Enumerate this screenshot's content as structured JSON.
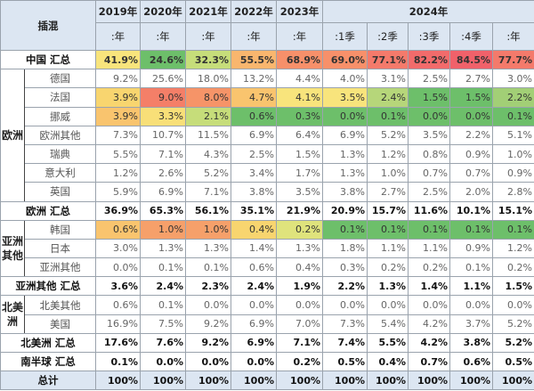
{
  "header": {
    "corner": "插混",
    "years": [
      "2019年",
      "2020年",
      "2021年",
      "2022年",
      "2023年",
      "2024年"
    ],
    "sub": [
      ":年",
      ":年",
      ":年",
      ":年",
      ":年",
      ":1季",
      ":2季",
      ":3季",
      ":4季",
      ":年"
    ]
  },
  "groups": {
    "europe": "欧洲",
    "asia": "亚洲其他",
    "na": "北美洲"
  },
  "rows": [
    {
      "name": "中国 汇总",
      "type": "sum",
      "values": [
        "41.9%",
        "24.6%",
        "32.3%",
        "55.5%",
        "68.9%",
        "69.0%",
        "77.1%",
        "82.2%",
        "84.5%",
        "77.7%"
      ],
      "colors": [
        "#f8e47c",
        "#6dbf6a",
        "#c6dd7a",
        "#f9b66e",
        "#f7906a",
        "#f7906a",
        "#f47a6b",
        "#f26b6b",
        "#f0616a",
        "#f47a6b"
      ]
    },
    {
      "name": "德国",
      "group": "europe",
      "values": [
        "9.2%",
        "25.6%",
        "18.0%",
        "13.2%",
        "4.4%",
        "4.0%",
        "3.1%",
        "2.5%",
        "2.7%",
        "3.0%"
      ]
    },
    {
      "name": "法国",
      "group": "europe",
      "values": [
        "3.9%",
        "9.0%",
        "8.0%",
        "4.7%",
        "4.1%",
        "3.5%",
        "2.4%",
        "1.5%",
        "1.5%",
        "2.2%"
      ],
      "colors": [
        "#f8d56f",
        "#f47f68",
        "#f69468",
        "#f9c46e",
        "#f8e47c",
        "#f8e47c",
        "#b6d67a",
        "#6dbf6a",
        "#6dbf6a",
        "#a2cf76"
      ]
    },
    {
      "name": "挪威",
      "group": "europe",
      "values": [
        "3.9%",
        "3.3%",
        "2.1%",
        "0.6%",
        "0.3%",
        "0.0%",
        "0.1%",
        "0.0%",
        "0.0%",
        "0.1%"
      ],
      "colors": [
        "#f9c46e",
        "#f8df78",
        "#c6dd7a",
        "#6dbf6a",
        "#6dbf6a",
        "#6dbf6a",
        "#6dbf6a",
        "#6dbf6a",
        "#6dbf6a",
        "#6dbf6a"
      ]
    },
    {
      "name": "欧洲其他",
      "group": "europe",
      "values": [
        "7.3%",
        "10.7%",
        "11.5%",
        "6.9%",
        "6.4%",
        "6.9%",
        "5.2%",
        "3.5%",
        "2.2%",
        "5.1%"
      ]
    },
    {
      "name": "瑞典",
      "group": "europe",
      "values": [
        "5.5%",
        "7.1%",
        "4.3%",
        "2.5%",
        "1.5%",
        "1.3%",
        "1.2%",
        "0.8%",
        "0.9%",
        "1.0%"
      ]
    },
    {
      "name": "意大利",
      "group": "europe",
      "values": [
        "1.2%",
        "2.6%",
        "5.2%",
        "3.4%",
        "1.7%",
        "1.3%",
        "1.0%",
        "0.7%",
        "0.7%",
        "0.9%"
      ]
    },
    {
      "name": "英国",
      "group": "europe",
      "values": [
        "5.9%",
        "6.9%",
        "7.1%",
        "3.8%",
        "3.5%",
        "3.8%",
        "2.7%",
        "2.5%",
        "2.0%",
        "2.8%"
      ]
    },
    {
      "name": "欧洲 汇总",
      "type": "sum",
      "values": [
        "36.9%",
        "65.3%",
        "56.1%",
        "35.1%",
        "21.9%",
        "20.9%",
        "15.7%",
        "11.6%",
        "10.1%",
        "15.1%"
      ]
    },
    {
      "name": "韩国",
      "group": "asia",
      "values": [
        "0.6%",
        "1.0%",
        "1.0%",
        "0.4%",
        "0.2%",
        "0.1%",
        "0.1%",
        "0.1%",
        "0.1%",
        "0.1%"
      ],
      "colors": [
        "#f9c46e",
        "#f6a06a",
        "#f6a06a",
        "#f8d56f",
        "#dfe37c",
        "#6dbf6a",
        "#6dbf6a",
        "#6dbf6a",
        "#6dbf6a",
        "#6dbf6a"
      ]
    },
    {
      "name": "日本",
      "group": "asia",
      "values": [
        "3.0%",
        "1.3%",
        "1.3%",
        "1.4%",
        "1.3%",
        "1.8%",
        "1.1%",
        "1.1%",
        "0.9%",
        "1.2%"
      ]
    },
    {
      "name": "亚洲其他",
      "group": "asia",
      "values": [
        "0.0%",
        "0.1%",
        "0.1%",
        "0.6%",
        "0.4%",
        "0.3%",
        "0.2%",
        "0.2%",
        "0.1%",
        "0.2%"
      ]
    },
    {
      "name": "亚洲其他 汇总",
      "type": "sum",
      "values": [
        "3.6%",
        "2.4%",
        "2.3%",
        "2.4%",
        "1.9%",
        "2.2%",
        "1.3%",
        "1.4%",
        "1.1%",
        "1.5%"
      ]
    },
    {
      "name": "北美其他",
      "group": "na",
      "values": [
        "0.6%",
        "0.1%",
        "0.0%",
        "0.0%",
        "0.0%",
        "0.0%",
        "0.0%",
        "0.0%",
        "0.0%",
        "0.0%"
      ]
    },
    {
      "name": "美国",
      "group": "na",
      "values": [
        "16.9%",
        "7.5%",
        "9.2%",
        "6.9%",
        "7.0%",
        "7.3%",
        "5.4%",
        "4.2%",
        "3.7%",
        "5.2%"
      ]
    },
    {
      "name": "北美洲 汇总",
      "type": "sum",
      "values": [
        "17.6%",
        "7.6%",
        "9.2%",
        "6.9%",
        "7.1%",
        "7.4%",
        "5.5%",
        "4.2%",
        "3.8%",
        "5.2%"
      ]
    },
    {
      "name": "南半球 汇总",
      "type": "sum",
      "values": [
        "0.1%",
        "0.0%",
        "0.0%",
        "0.0%",
        "0.2%",
        "0.5%",
        "0.4%",
        "0.7%",
        "0.6%",
        "0.5%"
      ]
    },
    {
      "name": "总计",
      "type": "total",
      "values": [
        "100%",
        "100%",
        "100%",
        "100%",
        "100%",
        "100%",
        "100%",
        "100%",
        "100%",
        "100%"
      ]
    }
  ]
}
